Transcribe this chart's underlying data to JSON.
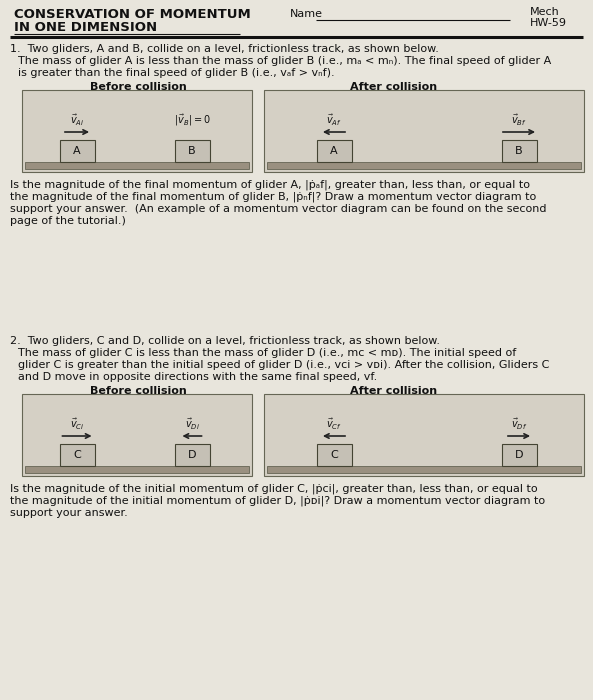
{
  "page_bg": "#e8e5dc",
  "box_bg": "#d5d0c5",
  "glider_bg": "#c5c0b5",
  "track_bg": "#9a9080",
  "arrow_color": "#222222",
  "text_color": "#111111",
  "title1": "CONSERVATION OF MOMENTUM",
  "title2": "IN ONE DIMENSION",
  "name_label": "Name",
  "mech": "Mech",
  "hw": "HW-59",
  "q1_line1": "1.  Two gliders, A and B, collide on a level, frictionless track, as shown below.",
  "q1_para1": "The mass of glider A is less than the mass of glider B (i.e., m",
  "q1_para1b": " < m",
  "q1_para1c": "). The final speed of glider A",
  "q1_para2": "is greater than the final speed of glider B (i.e., v",
  "q1_para2b": " > v",
  "q1_para2c": ").",
  "before": "Before collision",
  "after": "After collision",
  "q1_question1": "Is the magnitude of the final momentum of glider A, |",
  "q1_question2": "|, ",
  "q2_line1": "2.  Two gliders, C and D, collide on a level, frictionless track, as shown below.",
  "q2_para1": "The mass of glider C is less than the mass of glider D (i.e., m",
  "q2_para1b": " < m",
  "q2_para1c": "). The initial speed of",
  "q2_para2": "glider C is greater than the initial speed of glider D (i.e., v",
  "q2_para2b": " > v",
  "q2_para2c": "). After the collision, Gliders C",
  "q2_para3": "and D move in opposite directions with the same final speed, v",
  "q2_para3b": ".",
  "separator_color": "#222222",
  "underline_color": "#444444"
}
